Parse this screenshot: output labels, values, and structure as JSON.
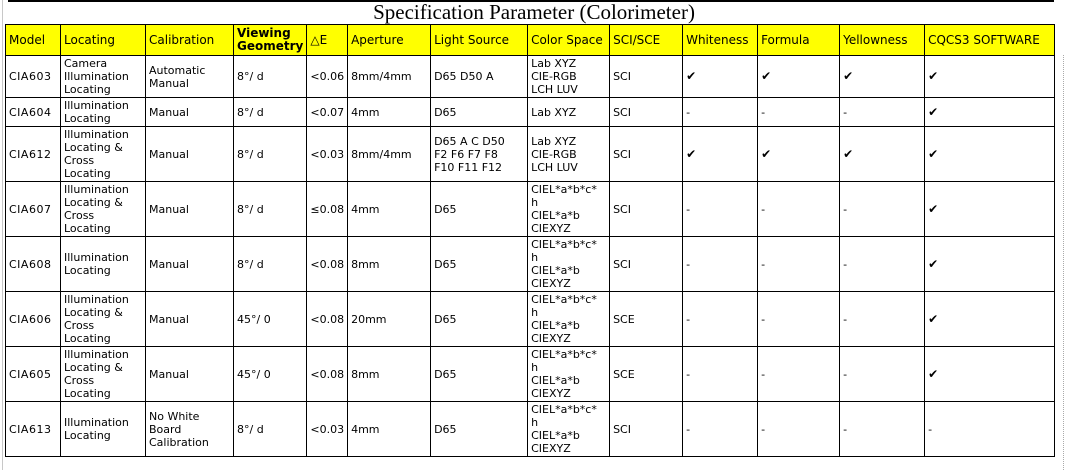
{
  "title": "Specification Parameter (Colorimeter)",
  "colors": {
    "header_bg": "#ffff00",
    "border": "#000000",
    "text": "#000000"
  },
  "icons": {
    "check": "✔",
    "dash": "-"
  },
  "table": {
    "columns": [
      {
        "key": "model",
        "label": "Model",
        "bold": false
      },
      {
        "key": "locating",
        "label": "Locating",
        "bold": false
      },
      {
        "key": "calibration",
        "label": "Calibration",
        "bold": false
      },
      {
        "key": "viewing",
        "label": "Viewing Geometry",
        "bold": true
      },
      {
        "key": "delta_e",
        "label": "△E",
        "bold": false
      },
      {
        "key": "aperture",
        "label": "Aperture",
        "bold": false
      },
      {
        "key": "light",
        "label": "Light Source",
        "bold": false
      },
      {
        "key": "color_space",
        "label": "Color Space",
        "bold": false
      },
      {
        "key": "sci_sce",
        "label": "SCI/SCE",
        "bold": false
      },
      {
        "key": "whiteness",
        "label": "Whiteness",
        "bold": false
      },
      {
        "key": "formula",
        "label": "Formula",
        "bold": false
      },
      {
        "key": "yellowness",
        "label": "Yellowness",
        "bold": false
      },
      {
        "key": "cqcs3",
        "label": "CQCS3 SOFTWARE",
        "bold": false
      }
    ],
    "rows": [
      {
        "model": "CIA603",
        "locating": "Camera\nIllumination\nLocating",
        "calibration": "Automatic\nManual",
        "viewing": "8°/ d",
        "delta_e": "<0.06",
        "aperture": "8mm/4mm",
        "light": "D65 D50 A",
        "color_space": "Lab XYZ\nCIE-RGB\nLCH LUV",
        "sci_sce": "SCI",
        "whiteness": "✔",
        "formula": "✔",
        "yellowness": "✔",
        "cqcs3": "✔"
      },
      {
        "model": "CIA604",
        "locating": "Illumination\nLocating",
        "calibration": "Manual",
        "viewing": "8°/ d",
        "delta_e": "<0.07",
        "aperture": "4mm",
        "light": "D65",
        "color_space": "Lab XYZ",
        "sci_sce": "SCI",
        "whiteness": "-",
        "formula": "-",
        "yellowness": "-",
        "cqcs3": "✔"
      },
      {
        "model": "CIA612",
        "locating": "Illumination\nLocating &\nCross\nLocating",
        "calibration": "Manual",
        "viewing": "8°/ d",
        "delta_e": "<0.03",
        "aperture": "8mm/4mm",
        "light": "D65 A C D50\nF2 F6 F7 F8\nF10 F11 F12",
        "color_space": "Lab XYZ\nCIE-RGB\nLCH LUV",
        "sci_sce": "SCI",
        "whiteness": "✔",
        "formula": "✔",
        "yellowness": "✔",
        "cqcs3": "✔"
      },
      {
        "model": "CIA607",
        "locating": "Illumination\nLocating &\nCross\nLocating",
        "calibration": "Manual",
        "viewing": "8°/ d",
        "delta_e": "≤0.08",
        "aperture": "4mm",
        "light": "D65",
        "color_space": "CIEL*a*b*c*\nh\nCIEL*a*b\nCIEXYZ",
        "sci_sce": "SCI",
        "whiteness": "-",
        "formula": "-",
        "yellowness": "-",
        "cqcs3": "✔"
      },
      {
        "model": "CIA608",
        "locating": "Illumination\nLocating",
        "calibration": "Manual",
        "viewing": "8°/ d",
        "delta_e": "<0.08",
        "aperture": "8mm",
        "light": "D65",
        "color_space": "CIEL*a*b*c*\nh\nCIEL*a*b\nCIEXYZ",
        "sci_sce": "SCI",
        "whiteness": "-",
        "formula": "-",
        "yellowness": "-",
        "cqcs3": "✔"
      },
      {
        "model": "CIA606",
        "locating": "Illumination\nLocating &\nCross\nLocating",
        "calibration": "Manual",
        "viewing": "45°/ 0",
        "delta_e": "<0.08",
        "aperture": "20mm",
        "light": "D65",
        "color_space": "CIEL*a*b*c*\nh\nCIEL*a*b\nCIEXYZ",
        "sci_sce": "SCE",
        "whiteness": "-",
        "formula": "-",
        "yellowness": "-",
        "cqcs3": "✔"
      },
      {
        "model": "CIA605",
        "locating": "Illumination\nLocating &\nCross\nLocating",
        "calibration": "Manual",
        "viewing": "45°/ 0",
        "delta_e": "<0.08",
        "aperture": "8mm",
        "light": "D65",
        "color_space": "CIEL*a*b*c*\nh\nCIEL*a*b\nCIEXYZ",
        "sci_sce": "SCE",
        "whiteness": "-",
        "formula": "-",
        "yellowness": "-",
        "cqcs3": "✔"
      },
      {
        "model": "CIA613",
        "locating": "Illumination\nLocating",
        "calibration": "No White\nBoard\nCalibration",
        "viewing": "8°/ d",
        "delta_e": "<0.03",
        "aperture": "4mm",
        "light": "D65",
        "color_space": "CIEL*a*b*c*\nh\nCIEL*a*b\nCIEXYZ",
        "sci_sce": "SCI",
        "whiteness": "-",
        "formula": "-",
        "yellowness": "-",
        "cqcs3": "-"
      }
    ]
  }
}
